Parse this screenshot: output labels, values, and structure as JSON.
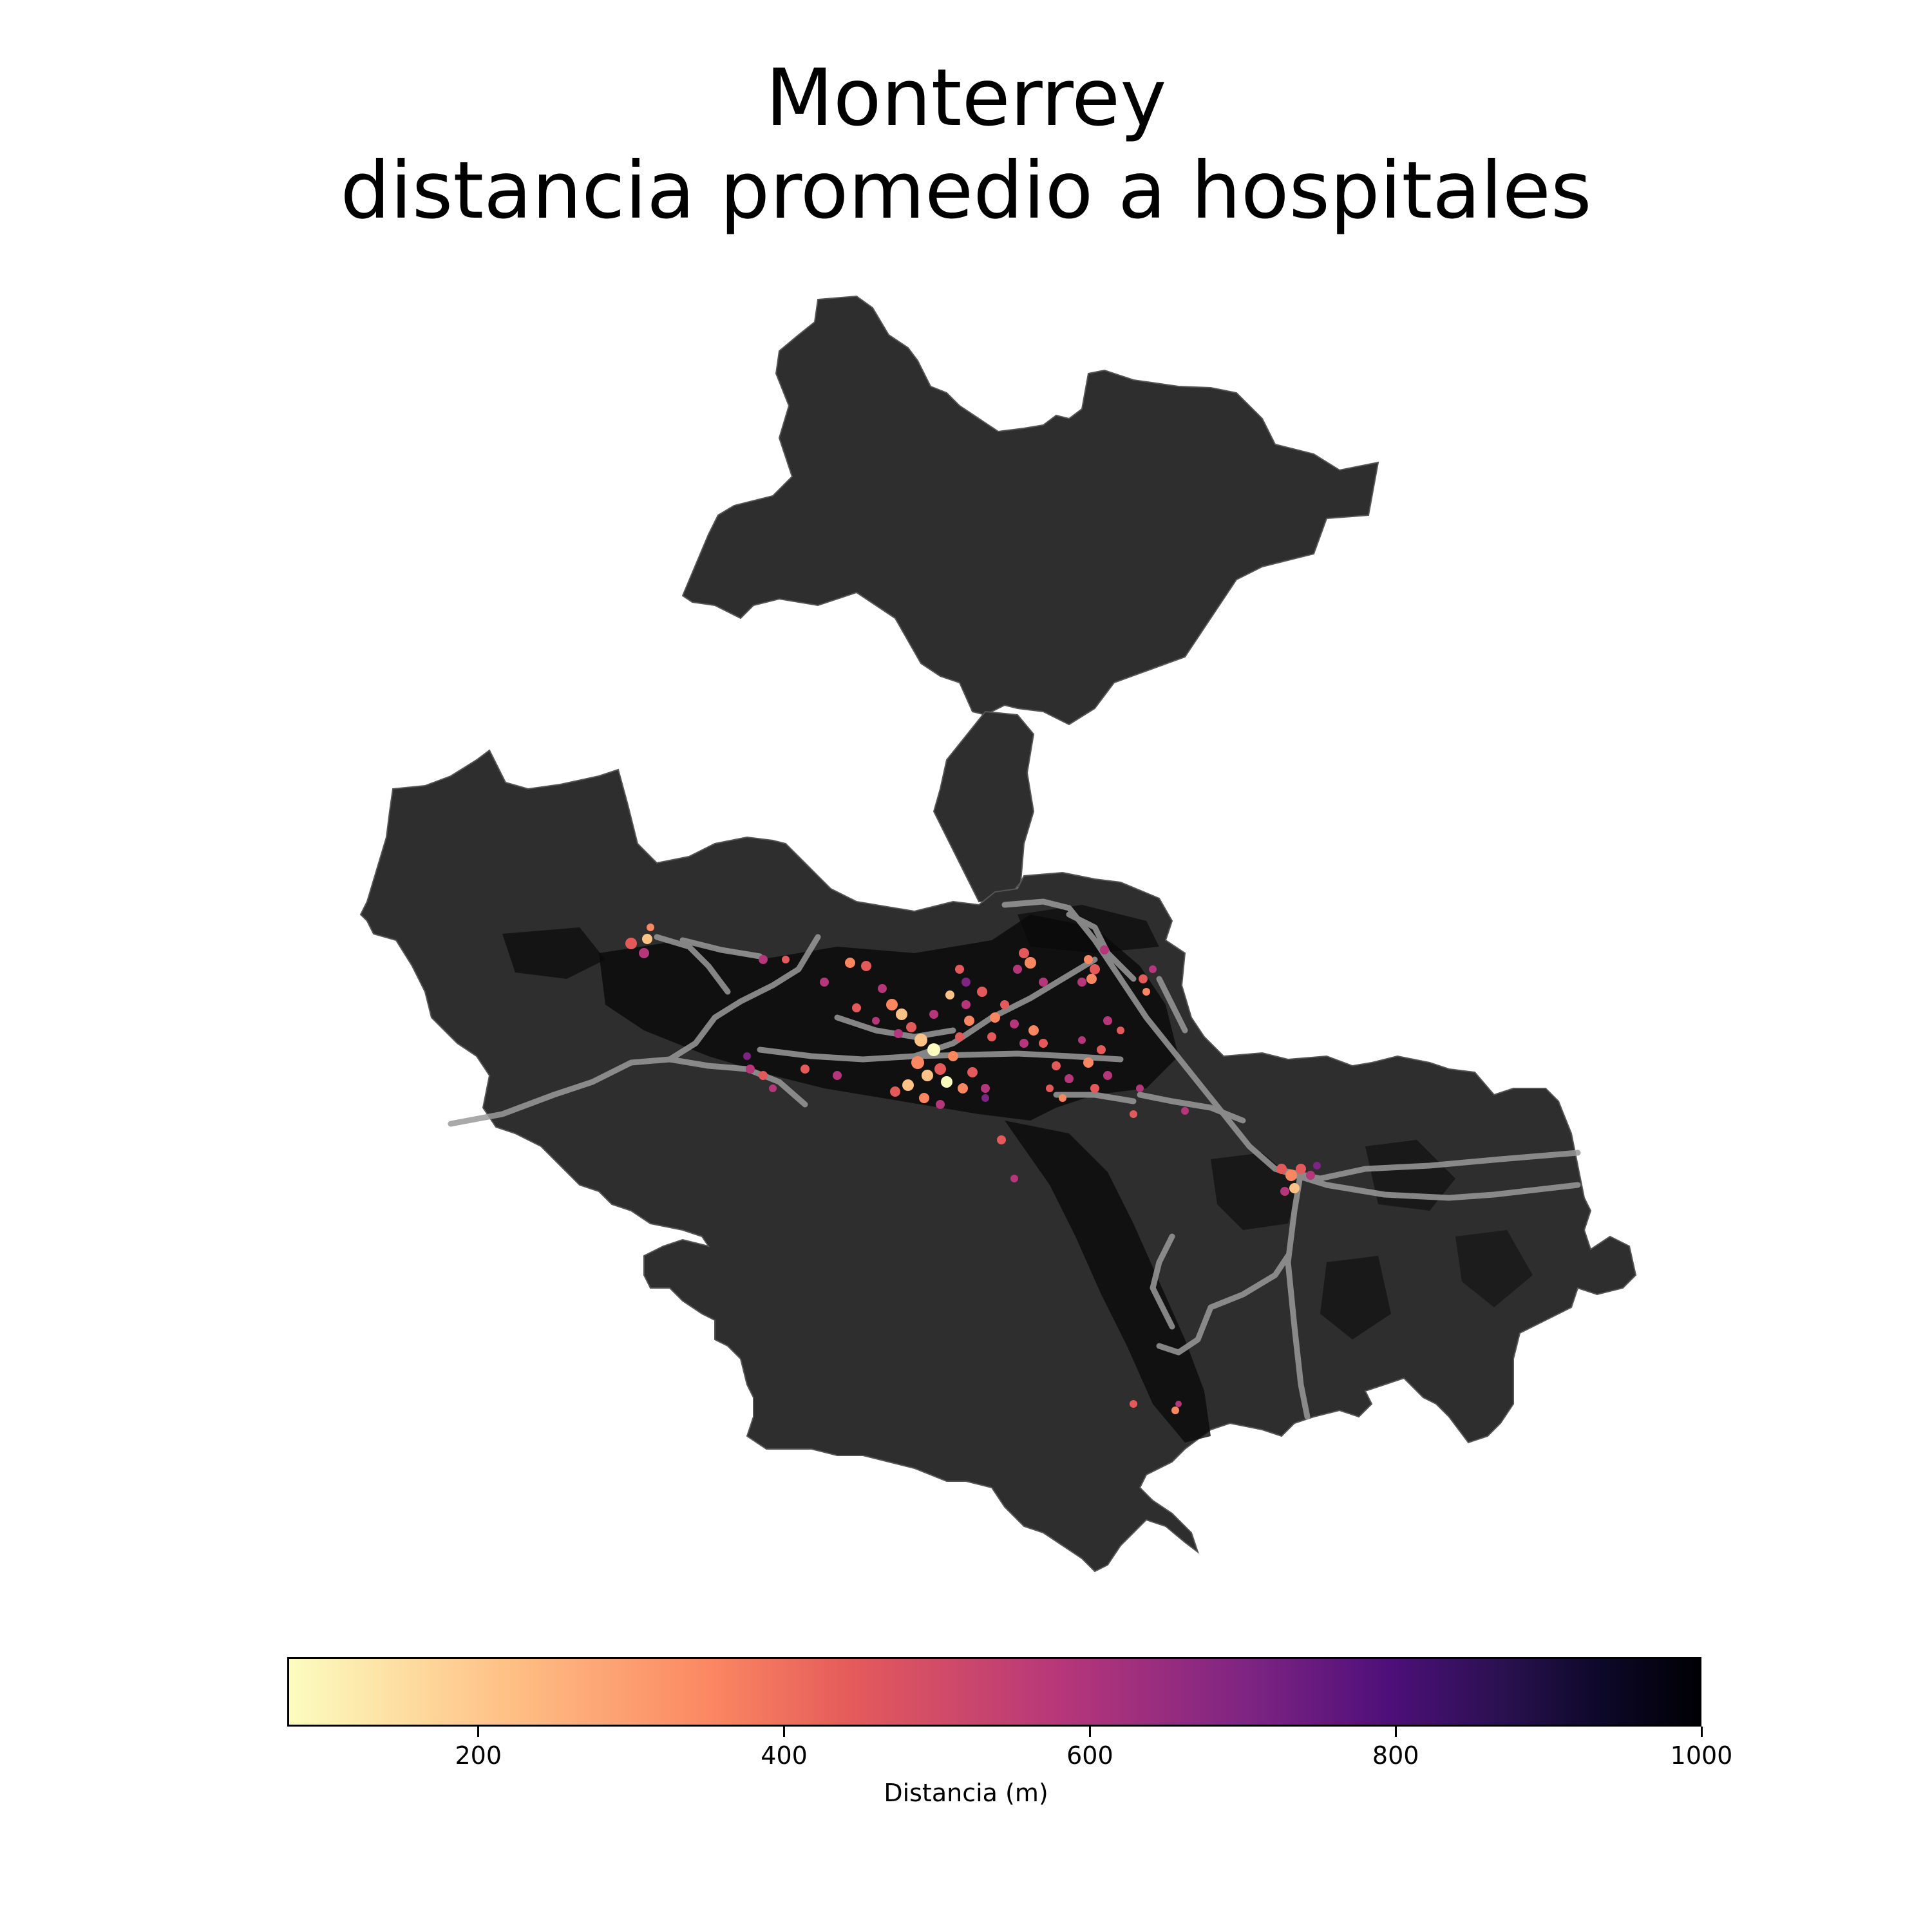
{
  "title": {
    "line1": "Monterrey",
    "line2": "distancia promedio a hospitales"
  },
  "map": {
    "region_color": "#2e2e2e",
    "urban_dark_color": "#0a0a0a",
    "road_color": "#9a9a9a",
    "hotspot_colors": [
      "#fcfdbf",
      "#fec287",
      "#fb8761",
      "#e45a5b",
      "#b5367a",
      "#7e2482"
    ]
  },
  "colorbar": {
    "label": "Distancia (m)",
    "min": 75,
    "max": 1000,
    "colormap": "magma_r",
    "ticks": [
      {
        "value": 200,
        "label": "200"
      },
      {
        "value": 400,
        "label": "400"
      },
      {
        "value": 600,
        "label": "600"
      },
      {
        "value": 800,
        "label": "800"
      },
      {
        "value": 1000,
        "label": "1000"
      }
    ]
  }
}
